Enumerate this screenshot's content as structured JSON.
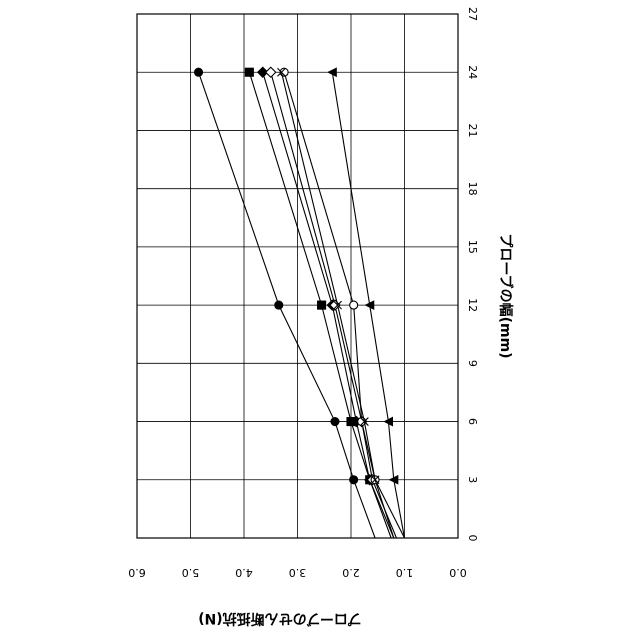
{
  "chart_data": {
    "type": "line",
    "orientation": "rotated-90",
    "xlabel": "プローブの幅(mm)",
    "ylabel": "プローブのせん断抵抗(N)",
    "xlim": [
      0,
      27
    ],
    "ylim": [
      0.0,
      6.0
    ],
    "xticks": [
      "0",
      "3",
      "6",
      "9",
      "12",
      "15",
      "18",
      "21",
      "24",
      "27"
    ],
    "yticks": [
      "0.0",
      "1.0",
      "2.0",
      "3.0",
      "4.0",
      "5.0",
      "6.0"
    ],
    "grid": true,
    "series": [
      {
        "marker": "circle-filled",
        "x": [
          3,
          6,
          12,
          24
        ],
        "y": [
          1.95,
          2.3,
          3.35,
          4.85
        ]
      },
      {
        "marker": "square-filled",
        "x": [
          3,
          6,
          12,
          24
        ],
        "y": [
          1.65,
          2.0,
          2.55,
          3.9
        ]
      },
      {
        "marker": "diamond-filled",
        "x": [
          3,
          6,
          12,
          24
        ],
        "y": [
          1.65,
          1.9,
          2.35,
          3.65
        ]
      },
      {
        "marker": "diamond-open",
        "x": [
          3,
          6,
          12,
          24
        ],
        "y": [
          1.6,
          1.8,
          2.3,
          3.5
        ]
      },
      {
        "marker": "circle-open",
        "x": [
          3,
          6,
          12,
          24
        ],
        "y": [
          1.55,
          1.8,
          1.95,
          3.25
        ]
      },
      {
        "marker": "x",
        "x": [
          3,
          6,
          12,
          24
        ],
        "y": [
          1.55,
          1.75,
          2.25,
          3.3
        ]
      },
      {
        "marker": "triangle-filled",
        "x": [
          3,
          6,
          12,
          24
        ],
        "y": [
          1.2,
          1.3,
          1.65,
          2.35
        ]
      }
    ]
  }
}
